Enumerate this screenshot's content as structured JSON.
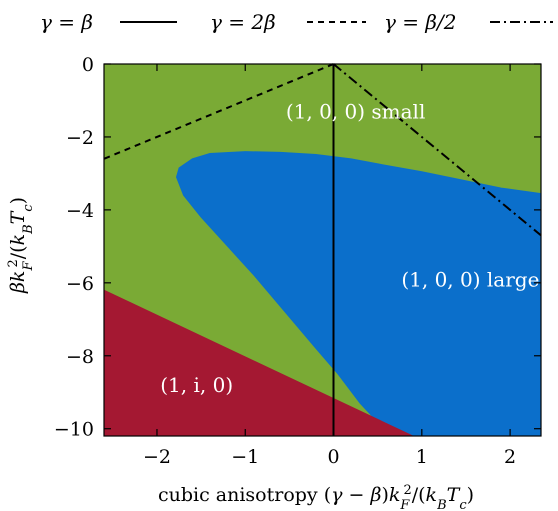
{
  "chart_data": {
    "type": "phase-diagram",
    "xlim": [
      -2.6,
      2.35
    ],
    "ylim": [
      -10.2,
      0
    ],
    "xticks": [
      -2,
      -1,
      0,
      1,
      2
    ],
    "yticks": [
      0,
      -2,
      -4,
      -6,
      -8,
      -10
    ],
    "xtick_labels": [
      "−2",
      "−1",
      "0",
      "1",
      "2"
    ],
    "ytick_labels": [
      "0",
      "−2",
      "−4",
      "−6",
      "−8",
      "−10"
    ],
    "xlabel": "cubic anisotropy (γ − β)k_F²/(k_B T_c)",
    "ylabel": "βk_F²/(k_B T_c)",
    "grid": false,
    "legend_position": "top, outside",
    "legend": [
      {
        "label": "γ = β",
        "style": "solid"
      },
      {
        "label": "γ = 2β",
        "style": "dashed"
      },
      {
        "label": "γ = β/2",
        "style": "dash-dot"
      }
    ],
    "regions": [
      {
        "label": "(1, 0, 0) small",
        "color": "#7aaa35",
        "label_at": [
          0.25,
          -1.5
        ],
        "polygon": [
          [
            -2.6,
            0
          ],
          [
            2.35,
            0
          ],
          [
            2.35,
            -10.2
          ],
          [
            -2.6,
            -10.2
          ]
        ]
      },
      {
        "label": "(1, 0, 0) large",
        "color": "#0b6fcb",
        "label_at": [
          1.55,
          -6.1
        ],
        "polygon": [
          [
            2.35,
            -3.55
          ],
          [
            1.9,
            -3.4
          ],
          [
            1.4,
            -3.15
          ],
          [
            1.0,
            -2.95
          ],
          [
            0.6,
            -2.78
          ],
          [
            0.2,
            -2.6
          ],
          [
            -0.2,
            -2.48
          ],
          [
            -0.6,
            -2.42
          ],
          [
            -1.0,
            -2.4
          ],
          [
            -1.4,
            -2.45
          ],
          [
            -1.6,
            -2.6
          ],
          [
            -1.75,
            -2.85
          ],
          [
            -1.78,
            -3.1
          ],
          [
            -1.7,
            -3.6
          ],
          [
            -1.5,
            -4.2
          ],
          [
            -1.2,
            -5.0
          ],
          [
            -0.9,
            -5.8
          ],
          [
            -0.55,
            -6.8
          ],
          [
            -0.2,
            -7.8
          ],
          [
            0.05,
            -8.5
          ],
          [
            0.3,
            -9.3
          ],
          [
            0.55,
            -9.95
          ],
          [
            0.6,
            -10.2
          ],
          [
            2.35,
            -10.2
          ]
        ]
      },
      {
        "label": "(1, i, 0)",
        "color": "#a41832",
        "label_at": [
          -1.55,
          -9.0
        ],
        "polygon": [
          [
            -2.6,
            -6.2
          ],
          [
            0.9,
            -10.2
          ],
          [
            -2.6,
            -10.2
          ]
        ]
      }
    ],
    "series": [
      {
        "name": "γ = β",
        "style": "solid",
        "points": [
          [
            0,
            0
          ],
          [
            0,
            -10.2
          ]
        ]
      },
      {
        "name": "γ = 2β",
        "style": "dashed",
        "points": [
          [
            0,
            0
          ],
          [
            -2.6,
            -2.6
          ]
        ]
      },
      {
        "name": "γ = β/2",
        "style": "dash-dot",
        "points": [
          [
            0,
            0
          ],
          [
            2.35,
            -4.7
          ]
        ]
      }
    ]
  }
}
